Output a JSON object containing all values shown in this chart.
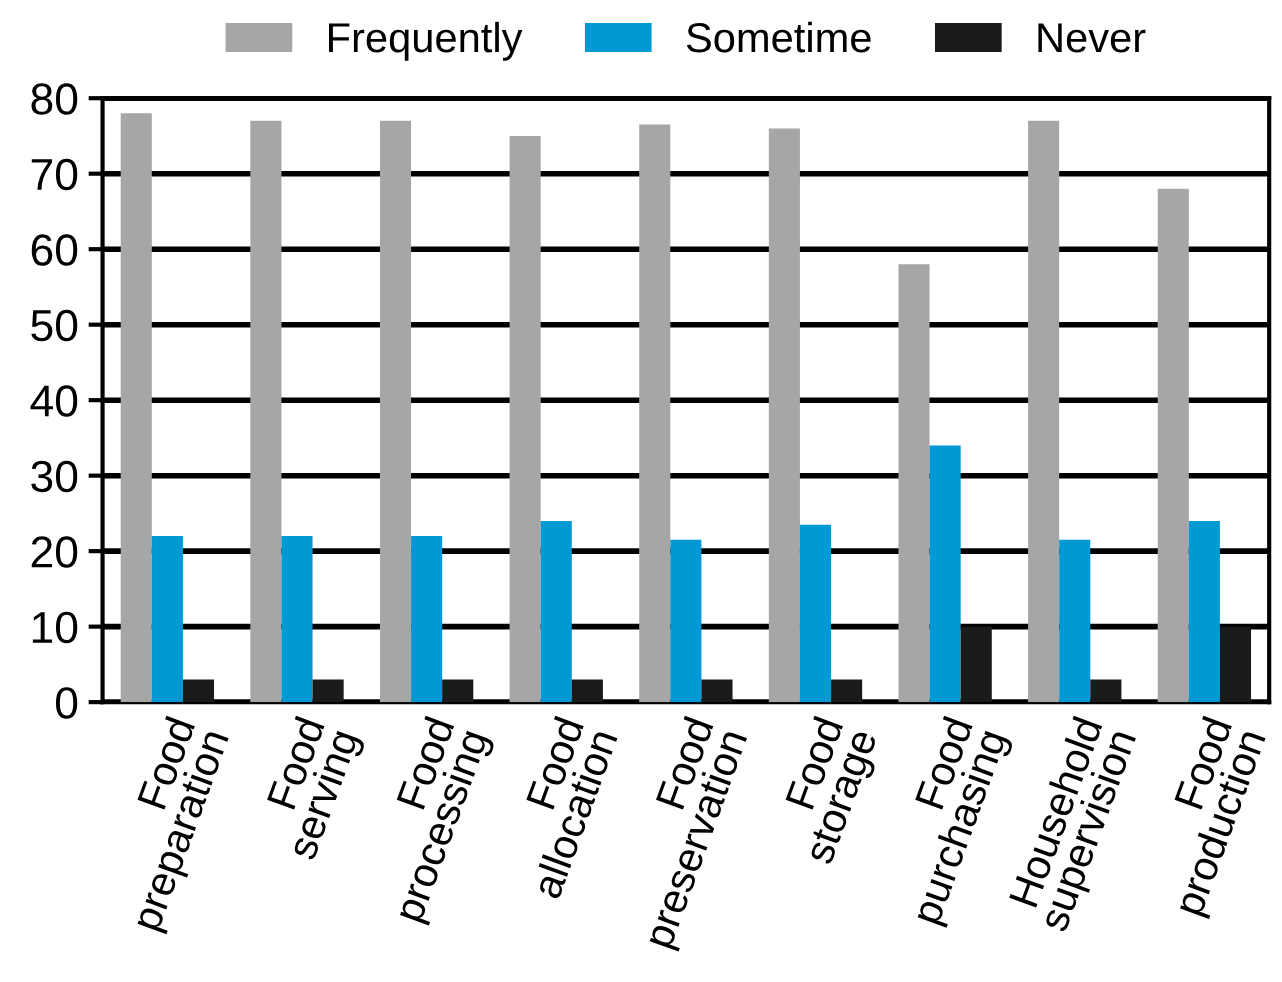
{
  "chart_data": {
    "type": "bar",
    "categories": [
      "Food\npreparation",
      "Food\nserving",
      "Food\nprocessing",
      "Food\nallocation",
      "Food\npreservation",
      "Food\nstorage",
      "Food\npurchasing",
      "Household\nsupervision",
      "Food\nproduction"
    ],
    "series": [
      {
        "name": "Frequently",
        "color": "#a6a6a6",
        "values": [
          78,
          77,
          77,
          75,
          76.5,
          76,
          58,
          77,
          68
        ]
      },
      {
        "name": "Sometime",
        "color": "#0099d4",
        "values": [
          22,
          22,
          22,
          24,
          21.5,
          23.5,
          34,
          21.5,
          24
        ]
      },
      {
        "name": "Never",
        "color": "#1a1a1a",
        "values": [
          3,
          3,
          3,
          3,
          3,
          3,
          10,
          3,
          10
        ]
      }
    ],
    "ylim": [
      0,
      80
    ],
    "yticks": [
      0,
      10,
      20,
      30,
      40,
      50,
      60,
      70,
      80
    ],
    "grid": "y",
    "legend": "top"
  }
}
